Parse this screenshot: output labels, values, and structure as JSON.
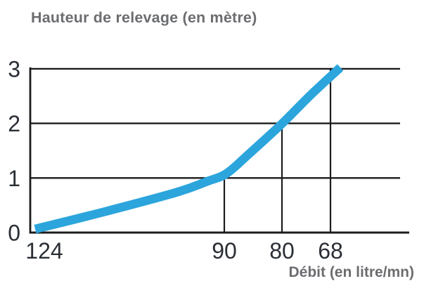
{
  "chart": {
    "title": "Hauteur de relevage (en mètre)",
    "x_axis_label": "Débit (en litre/mn)"
  },
  "chart_data": {
    "type": "line",
    "title": "Hauteur de relevage (en mètre)",
    "xlabel": "Débit (en litre/mn)",
    "ylabel": "Hauteur de relevage (en mètre)",
    "x_tick_labels": [
      "124",
      "90",
      "80",
      "68"
    ],
    "y_tick_labels": [
      "0",
      "1",
      "2",
      "3"
    ],
    "points": [
      {
        "debit": 124,
        "hauteur": 0
      },
      {
        "debit": 90,
        "hauteur": 1
      },
      {
        "debit": 80,
        "hauteur": 2
      },
      {
        "debit": 68,
        "hauteur": 3
      }
    ],
    "ylim": [
      0,
      3
    ],
    "grid": "horizontal gridlines at y=1,2,3; vertical drop lines under curve at debit 90, 80, 68",
    "legend": "none",
    "x_axis_note": "x axis is schematic (decreasing debit values, non-linear spacing)",
    "line_color": "#2BA5DC",
    "axis_color": "#1c1c1c",
    "tick_label_color": "#2a2e35",
    "title_color": "#6c6d70"
  }
}
